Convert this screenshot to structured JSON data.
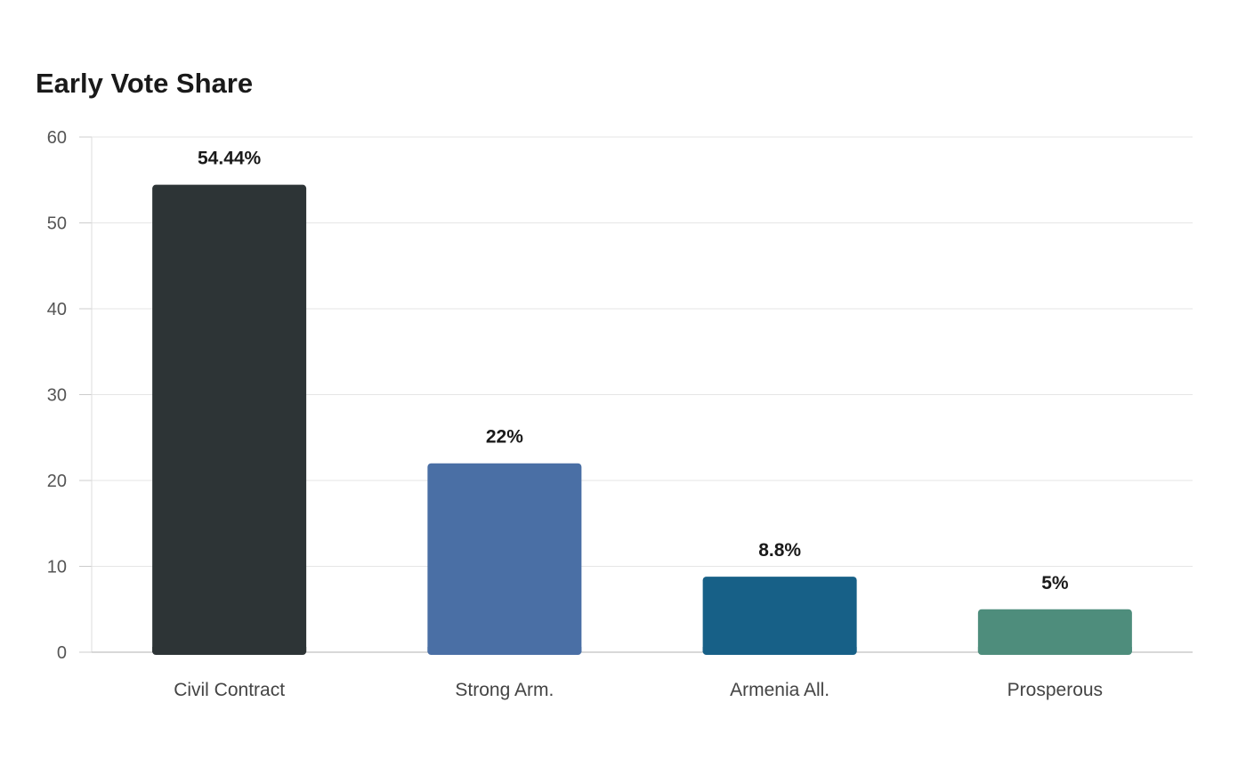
{
  "chart_data": {
    "type": "bar",
    "title": "Early Vote Share",
    "categories": [
      "Civil Contract",
      "Strong Arm.",
      "Armenia All.",
      "Prosperous"
    ],
    "values": [
      54.44,
      22,
      8.8,
      5
    ],
    "value_labels": [
      "54.44%",
      "22%",
      "8.8%",
      "5%"
    ],
    "colors": [
      "#2d3436",
      "#4a6fa5",
      "#176087",
      "#4e8d7c"
    ],
    "ylim": [
      0,
      60
    ],
    "yticks": [
      0,
      10,
      20,
      30,
      40,
      50,
      60
    ],
    "xlabel": "",
    "ylabel": "",
    "grid": true,
    "legend": "none"
  }
}
